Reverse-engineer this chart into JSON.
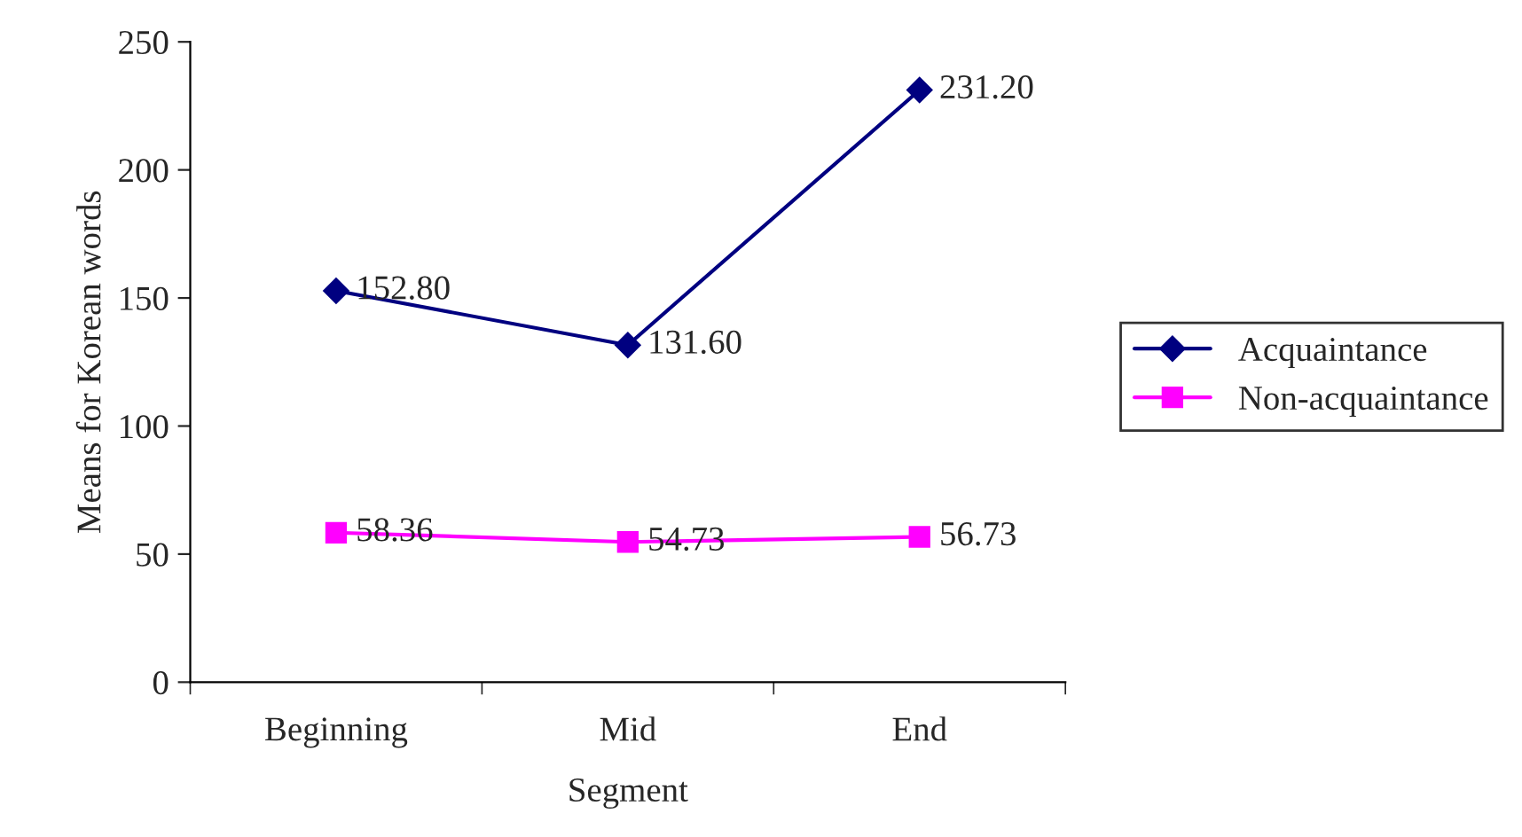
{
  "chart_data": {
    "type": "line",
    "xlabel": "Segment",
    "ylabel": "Means for Korean words",
    "categories": [
      "Beginning",
      "Mid",
      "End"
    ],
    "series": [
      {
        "name": "Acquaintance",
        "color": "#000080",
        "marker": "diamond",
        "values": [
          152.8,
          131.6,
          231.2
        ],
        "value_labels": [
          "152.80",
          "131.60",
          "231.20"
        ]
      },
      {
        "name": "Non-acquaintance",
        "color": "#ff00ff",
        "marker": "square",
        "values": [
          58.36,
          54.73,
          56.73
        ],
        "value_labels": [
          "58.36",
          "54.73",
          "56.73"
        ]
      }
    ],
    "ylim": [
      0,
      250
    ],
    "yticks": [
      0,
      50,
      100,
      150,
      200,
      250
    ],
    "grid": false,
    "legend": "right",
    "line_style": "solid"
  }
}
